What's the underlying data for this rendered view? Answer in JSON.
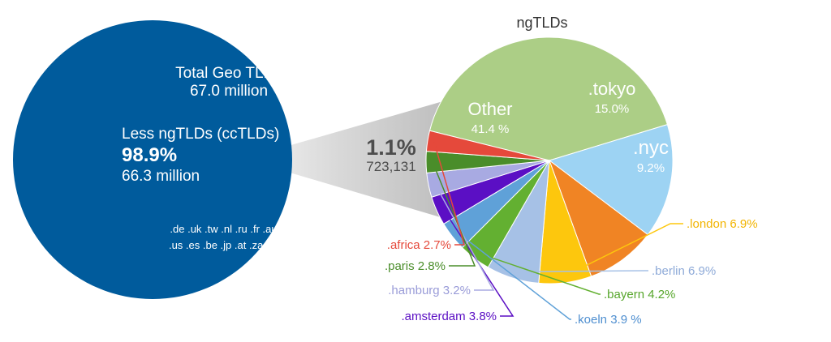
{
  "chart_data": [
    {
      "type": "pie",
      "name": "geo-tlds",
      "total": {
        "label": "Total Geo TLDs",
        "value_text": "67.0 million"
      },
      "slices": [
        {
          "label": "Less ngTLDs (ccTLDs)",
          "percent": 98.9,
          "value_text": "98.9%",
          "sub_text": "66.3 million",
          "color": "#005b9c"
        },
        {
          "label": "ngTLDs",
          "percent": 1.1,
          "value_text": "1.1%",
          "sub_text": "723,131",
          "color": "#c9c9c9"
        }
      ],
      "cctld_lines": [
        ".de .uk .tw .nl .ru .fr .au .ca",
        ".us .es .be .jp .at .za .mx .tr"
      ]
    },
    {
      "type": "pie",
      "name": "ngtlds",
      "title": "ngTLDs",
      "slices": [
        {
          "label": "Other",
          "percent": 41.4,
          "text": "41.4 %",
          "color": "#acce86",
          "label_color": "#ffffff",
          "inside": true
        },
        {
          "label": ".tokyo",
          "percent": 15.0,
          "text": "15.0%",
          "color": "#9dd3f3",
          "label_color": "#ffffff",
          "inside": true
        },
        {
          "label": ".nyc",
          "percent": 9.2,
          "text": "9.2%",
          "color": "#f08424",
          "label_color": "#ffffff",
          "inside": true
        },
        {
          "label": ".london",
          "percent": 6.9,
          "text": ".london 6.9%",
          "color": "#fdc70d",
          "label_color": "#f2b400",
          "inside": false
        },
        {
          "label": ".berlin",
          "percent": 6.9,
          "text": ".berlin 6.9%",
          "color": "#a6c1e6",
          "label_color": "#8eaad8",
          "inside": false
        },
        {
          "label": ".bayern",
          "percent": 4.2,
          "text": ".bayern 4.2%",
          "color": "#63b031",
          "label_color": "#56a62b",
          "inside": false
        },
        {
          "label": ".koeln",
          "percent": 3.9,
          "text": ".koeln 3.9 %",
          "color": "#5fa1d8",
          "label_color": "#4f8fd0",
          "inside": false
        },
        {
          "label": ".amsterdam",
          "percent": 3.8,
          "text": ".amsterdam 3.8%",
          "color": "#5b0fc4",
          "label_color": "#5b0fc4",
          "inside": false
        },
        {
          "label": ".hamburg",
          "percent": 3.2,
          "text": ".hamburg 3.2%",
          "color": "#a8aae2",
          "label_color": "#9a9cd8",
          "inside": false
        },
        {
          "label": ".paris",
          "percent": 2.8,
          "text": ".paris 2.8%",
          "color": "#4a8d2a",
          "label_color": "#4a8d2a",
          "inside": false
        },
        {
          "label": ".africa",
          "percent": 2.7,
          "text": ".africa 2.7%",
          "color": "#e5493b",
          "label_color": "#e5493b",
          "inside": false
        }
      ]
    }
  ]
}
